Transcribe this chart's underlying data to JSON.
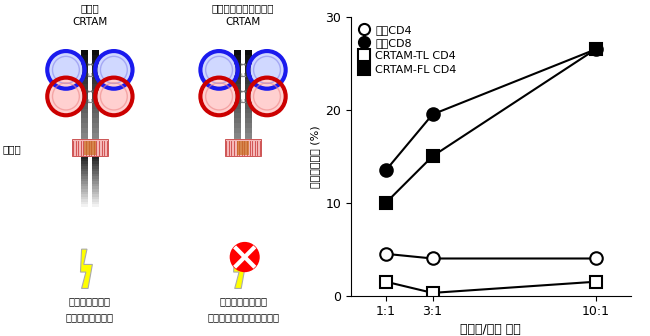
{
  "title_left1": "完全な",
  "title_left2": "CRTAM",
  "title_right1": "細胞内領域が欠失した",
  "title_right2": "CRTAM",
  "label_membrane": "細胞膜",
  "caption_left1": "刺激が伝達され",
  "caption_left2": "キラー細胞に分化",
  "caption_right1": "刺激が伝達されず",
  "caption_right2": "キラー細胞に分化出来ない",
  "xlabel": "キラー/標的 比率",
  "ylabel": "細胞傷害活性 (%)",
  "xtick_labels": [
    "1:1",
    "3:1",
    "10:1"
  ],
  "x_values": [
    1,
    3,
    10
  ],
  "ylim": [
    0,
    30
  ],
  "yticks": [
    0,
    10,
    20,
    30
  ],
  "series": [
    {
      "label": "正常CD4",
      "marker": "o",
      "fill": false,
      "values": [
        4.5,
        4.0,
        4.0
      ]
    },
    {
      "label": "正常CD8",
      "marker": "o",
      "fill": true,
      "values": [
        13.5,
        19.5,
        26.5
      ]
    },
    {
      "label": "CRTAM-TL CD4",
      "marker": "s",
      "fill": false,
      "values": [
        1.5,
        0.3,
        1.5
      ]
    },
    {
      "label": "CRTAM-FL CD4",
      "marker": "s",
      "fill": true,
      "values": [
        10.0,
        15.0,
        26.5
      ]
    }
  ]
}
